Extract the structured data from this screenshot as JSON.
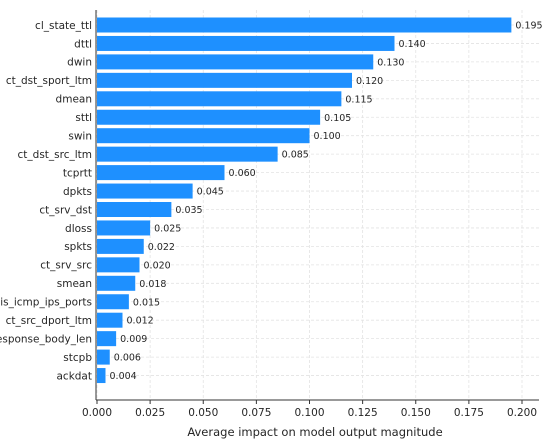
{
  "chart_data": {
    "type": "bar",
    "orientation": "horizontal",
    "title": "",
    "xlabel": "Average impact on model output magnitude",
    "ylabel": "",
    "xlim": [
      0,
      0.2
    ],
    "grid": true,
    "bar_color": "#1e90ff",
    "x_ticks": [
      "0.000",
      "0.025",
      "0.050",
      "0.075",
      "0.100",
      "0.125",
      "0.150",
      "0.175",
      "0.200"
    ],
    "categories": [
      "cl_state_ttl",
      "dttl",
      "dwin",
      "ct_dst_sport_ltm",
      "dmean",
      "sttl",
      "swin",
      "ct_dst_src_ltm",
      "tcprtt",
      "dpkts",
      "ct_srv_dst",
      "dloss",
      "spkts",
      "ct_srv_src",
      "smean",
      "is_icmp_ips_ports",
      "ct_src_dport_ltm",
      "response_body_len",
      "stcpb",
      "ackdat"
    ],
    "values": [
      0.195,
      0.14,
      0.13,
      0.12,
      0.115,
      0.105,
      0.1,
      0.085,
      0.06,
      0.045,
      0.035,
      0.025,
      0.022,
      0.02,
      0.018,
      0.015,
      0.012,
      0.009,
      0.006,
      0.004
    ],
    "value_labels": [
      "0.195",
      "0.140",
      "0.130",
      "0.120",
      "0.115",
      "0.105",
      "0.100",
      "0.085",
      "0.060",
      "0.045",
      "0.035",
      "0.025",
      "0.022",
      "0.020",
      "0.018",
      "0.015",
      "0.012",
      "0.009",
      "0.006",
      "0.004"
    ]
  }
}
